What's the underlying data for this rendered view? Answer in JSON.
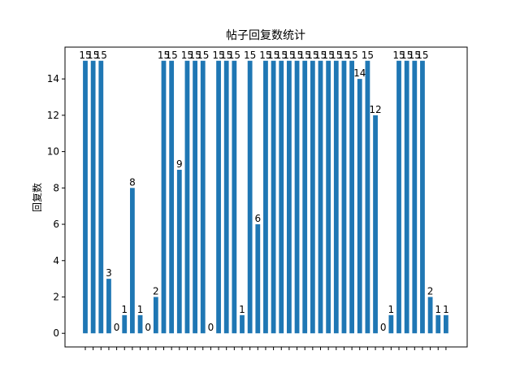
{
  "chart_data": {
    "type": "bar",
    "title": "帖子回复数统计",
    "y_label": "回复数",
    "categories": [
      null,
      null,
      null,
      null,
      null,
      null,
      null,
      null,
      null,
      null,
      null,
      null,
      null,
      null,
      null,
      null,
      null,
      null,
      null,
      null,
      null,
      null,
      null,
      null,
      null,
      null,
      null,
      null,
      null,
      null,
      null,
      null,
      null,
      null,
      null,
      null,
      null,
      null,
      null,
      null,
      null,
      null,
      null,
      null,
      null,
      null,
      null
    ],
    "values": [
      15,
      15,
      15,
      3,
      0,
      1,
      8,
      1,
      0,
      2,
      15,
      15,
      9,
      15,
      15,
      15,
      0,
      15,
      15,
      15,
      1,
      15,
      6,
      15,
      15,
      15,
      15,
      15,
      15,
      15,
      15,
      15,
      15,
      15,
      15,
      14,
      15,
      12,
      0,
      1,
      15,
      15,
      15,
      15,
      2,
      1,
      1
    ],
    "color": "#1f77b4",
    "ylim": [
      -0.75,
      15.75
    ],
    "yticks": [
      0,
      2,
      4,
      6,
      8,
      10,
      12,
      14
    ]
  }
}
